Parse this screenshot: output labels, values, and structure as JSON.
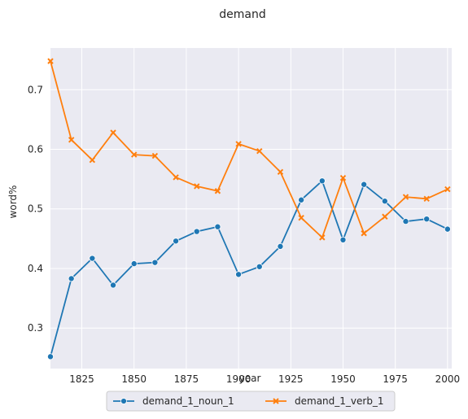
{
  "chart_data": {
    "type": "line",
    "title": "demand",
    "xlabel": "year",
    "ylabel": "word%",
    "xlim": [
      1810,
      2002
    ],
    "ylim": [
      0.232,
      0.77
    ],
    "x_ticks": [
      1825,
      1850,
      1875,
      1900,
      1925,
      1950,
      1975,
      2000
    ],
    "y_ticks": [
      0.3,
      0.4,
      0.5,
      0.6,
      0.7
    ],
    "grid": true,
    "legend": "bottom-center",
    "x": [
      1810,
      1820,
      1830,
      1840,
      1850,
      1860,
      1870,
      1880,
      1890,
      1900,
      1910,
      1920,
      1930,
      1940,
      1950,
      1960,
      1970,
      1980,
      1990,
      2000
    ],
    "series": [
      {
        "name": "demand_1_noun_1",
        "color": "#1f77b4",
        "marker": "circle",
        "values": [
          0.252,
          0.383,
          0.417,
          0.372,
          0.408,
          0.41,
          0.446,
          0.462,
          0.47,
          0.39,
          0.403,
          0.437,
          0.515,
          0.547,
          0.448,
          0.541,
          0.513,
          0.479,
          0.483,
          0.466
        ]
      },
      {
        "name": "demand_1_verb_1",
        "color": "#ff7f0e",
        "marker": "x",
        "values": [
          0.748,
          0.616,
          0.582,
          0.628,
          0.591,
          0.589,
          0.553,
          0.538,
          0.53,
          0.609,
          0.597,
          0.562,
          0.485,
          0.452,
          0.552,
          0.459,
          0.487,
          0.52,
          0.517,
          0.533
        ]
      }
    ]
  }
}
